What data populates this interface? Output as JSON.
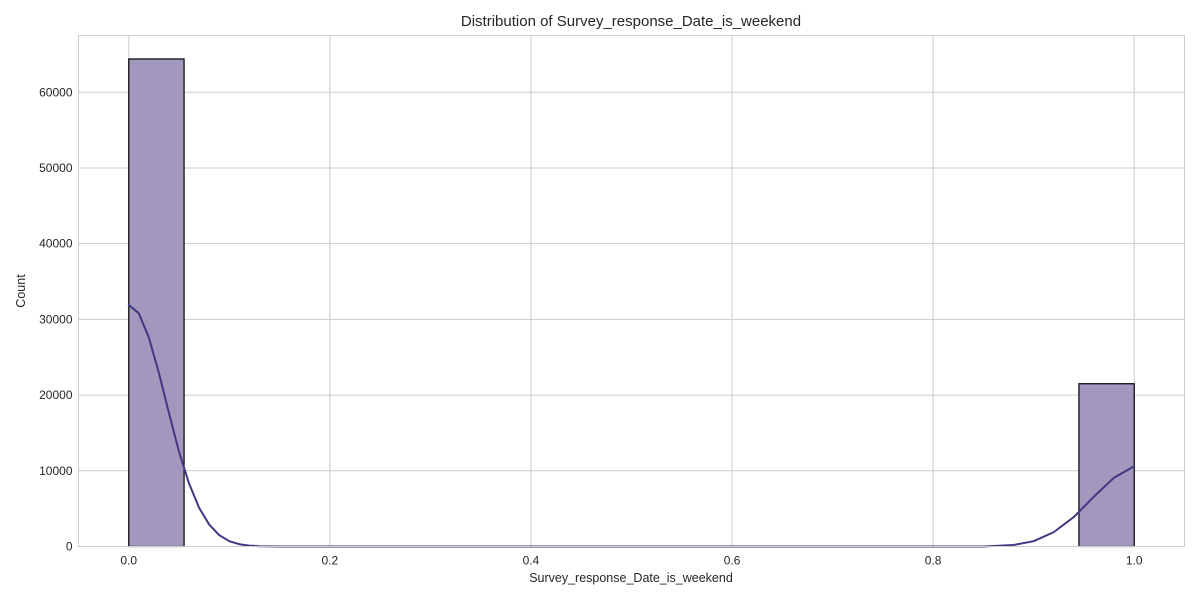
{
  "chart_data": {
    "type": "bar",
    "title": "Distribution of Survey_response_Date_is_weekend",
    "xlabel": "Survey_response_Date_is_weekend",
    "ylabel": "Count",
    "xlim": [
      -0.05,
      1.05
    ],
    "ylim": [
      0,
      67500
    ],
    "xticks": [
      0.0,
      0.2,
      0.4,
      0.6,
      0.8,
      1.0
    ],
    "xtick_labels": [
      "0.0",
      "0.2",
      "0.4",
      "0.6",
      "0.8",
      "1.0"
    ],
    "yticks": [
      0,
      10000,
      20000,
      30000,
      40000,
      50000,
      60000
    ],
    "ytick_labels": [
      "0",
      "10000",
      "20000",
      "30000",
      "40000",
      "50000",
      "60000"
    ],
    "grid": true,
    "bins": [
      {
        "x0": 0.0,
        "x1": 0.055,
        "count": 64400
      },
      {
        "x0": 0.945,
        "x1": 1.0,
        "count": 21500
      }
    ],
    "kde": {
      "x": [
        0.0,
        0.01,
        0.02,
        0.03,
        0.04,
        0.05,
        0.06,
        0.07,
        0.08,
        0.09,
        0.1,
        0.11,
        0.12,
        0.13,
        0.14,
        0.15,
        0.17,
        0.2,
        0.85,
        0.88,
        0.9,
        0.92,
        0.94,
        0.96,
        0.98,
        1.0
      ],
      "y": [
        31900,
        30800,
        27600,
        22900,
        17600,
        12500,
        8300,
        5100,
        2900,
        1500,
        700,
        300,
        120,
        40,
        10,
        0,
        0,
        0,
        0,
        200,
        700,
        1900,
        3900,
        6600,
        9100,
        10600
      ]
    },
    "bar_color": "#a298bd",
    "line_color": "#433682"
  }
}
